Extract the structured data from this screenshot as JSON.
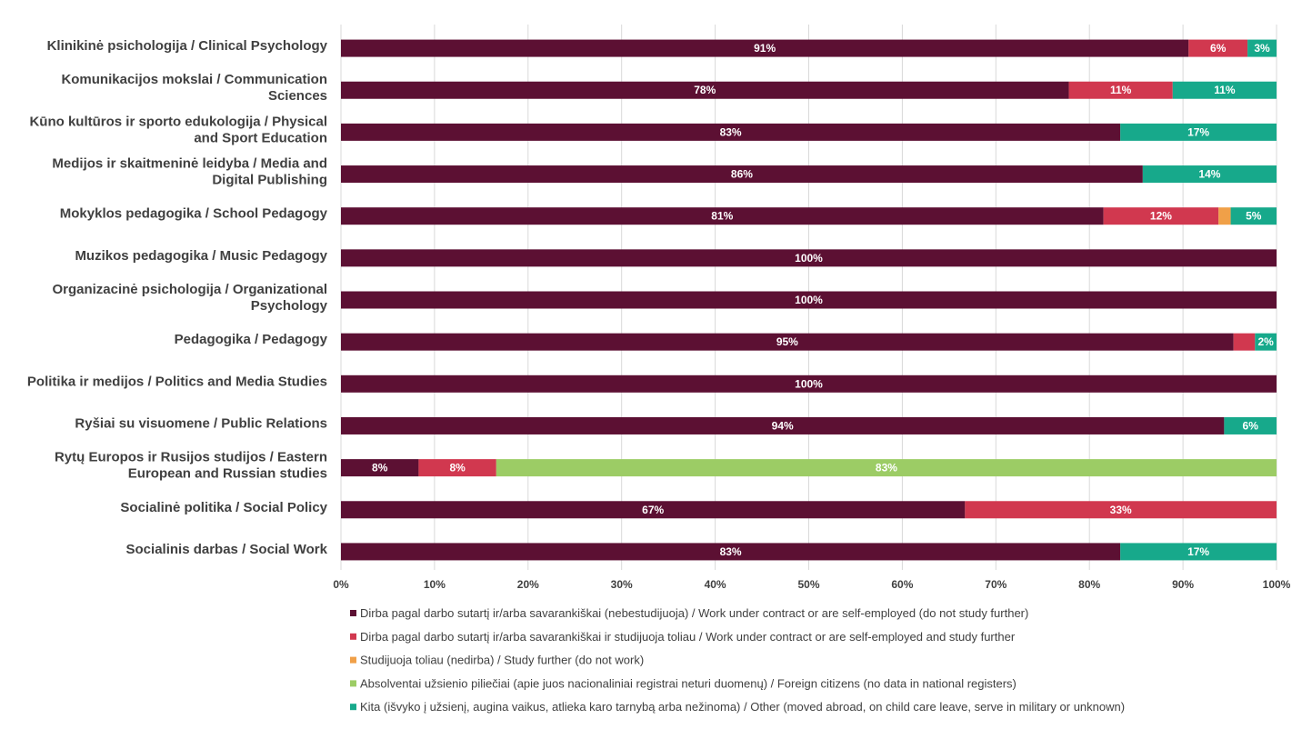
{
  "chart_data": {
    "type": "bar",
    "orientation": "horizontal",
    "stacked": true,
    "title": "",
    "xlabel": "",
    "ylabel": "",
    "xlim": [
      0,
      100
    ],
    "grid": true,
    "legend_position": "bottom",
    "ticks": [
      "0%",
      "10%",
      "20%",
      "30%",
      "40%",
      "50%",
      "60%",
      "70%",
      "80%",
      "90%",
      "100%"
    ],
    "categories": [
      [
        "Klinikinė psichologija / Clinical Psychology"
      ],
      [
        "Komunikacijos mokslai / Communication",
        "Sciences"
      ],
      [
        "Kūno kultūros ir sporto edukologija / Physical",
        "and Sport Education"
      ],
      [
        "Medijos ir skaitmeninė leidyba / Media and",
        "Digital Publishing"
      ],
      [
        "Mokyklos pedagogika / School Pedagogy"
      ],
      [
        "Muzikos pedagogika / Music Pedagogy"
      ],
      [
        "Organizacinė psichologija / Organizational",
        "Psychology"
      ],
      [
        "Pedagogika / Pedagogy"
      ],
      [
        "Politika ir medijos / Politics and Media Studies"
      ],
      [
        "Ryšiai su visuomene / Public Relations"
      ],
      [
        "Rytų Europos ir Rusijos studijos / Eastern",
        "European and Russian studies"
      ],
      [
        "Socialinė politika / Social Policy"
      ],
      [
        "Socialinis darbas / Social Work"
      ]
    ],
    "series": [
      {
        "name": "Dirba pagal darbo sutartį ir/arba savarankiškai (nebestudijuoja) / Work under contract or are self-employed (do not study further)",
        "color": "#5c1033",
        "values": [
          90.6,
          77.8,
          83.3,
          85.7,
          81.5,
          100,
          100,
          95.4,
          100,
          94.4,
          8.3,
          66.7,
          83.3
        ],
        "labels": [
          "91%",
          "78%",
          "83%",
          "86%",
          "81%",
          "100%",
          "100%",
          "95%",
          "100%",
          "94%",
          "8%",
          "67%",
          "83%"
        ]
      },
      {
        "name": "Dirba pagal darbo sutartį ir/arba savarankiškai  ir studijuoja toliau / Work under contract or are self-employed and study further",
        "color": "#d1384f",
        "values": [
          6.3,
          11.1,
          0,
          0,
          12.3,
          0,
          0,
          2.3,
          0,
          0,
          8.3,
          33.3,
          0
        ],
        "labels": [
          "6%",
          "11%",
          "",
          "",
          "12%",
          "",
          "",
          "",
          "",
          "",
          "8%",
          "33%",
          ""
        ]
      },
      {
        "name": "Studijuoja toliau (nedirba) / Study further (do not work)",
        "color": "#f0a048",
        "values": [
          0,
          0,
          0,
          0,
          1.3,
          0,
          0,
          0,
          0,
          0,
          0,
          0,
          0
        ],
        "labels": [
          "",
          "",
          "",
          "",
          "",
          "",
          "",
          "",
          "",
          "",
          "",
          "",
          ""
        ]
      },
      {
        "name": "Absolventai užsienio piliečiai (apie juos nacionaliniai registrai neturi duomenų) / Foreign citizens (no data in national registers)",
        "color": "#9ccc65",
        "values": [
          0,
          0,
          0,
          0,
          0,
          0,
          0,
          0,
          0,
          0,
          83.4,
          0,
          0
        ],
        "labels": [
          "",
          "",
          "",
          "",
          "",
          "",
          "",
          "",
          "",
          "",
          "83%",
          "",
          ""
        ]
      },
      {
        "name": "Kita (išvyko į užsienį, augina vaikus, atlieka karo tarnybą arba nežinoma) / Other (moved abroad, on child care leave, serve in military or unknown)",
        "color": "#17a98b",
        "values": [
          3.1,
          11.1,
          16.7,
          14.3,
          4.9,
          0,
          0,
          2.3,
          0,
          5.6,
          0,
          0,
          16.7
        ],
        "labels": [
          "3%",
          "11%",
          "17%",
          "14%",
          "5%",
          "",
          "",
          "2%",
          "",
          "6%",
          "",
          "",
          "17%"
        ]
      }
    ]
  }
}
